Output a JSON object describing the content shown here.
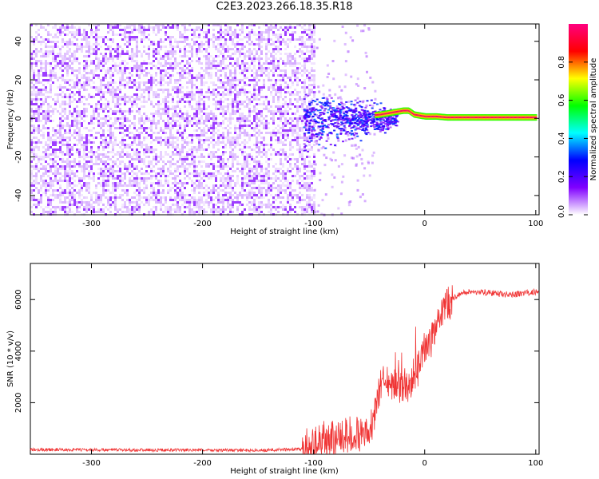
{
  "title": "C2E3.2023.266.18.35.R18",
  "colors": {
    "snr_line": "#f03434",
    "axis": "#000000"
  },
  "chart_data": [
    {
      "type": "heatmap",
      "xlabel": "Height of straight line (km)",
      "ylabel": "Frequency (Hz)",
      "xlim": [
        -355,
        103
      ],
      "ylim": [
        -50,
        49
      ],
      "xticks": [
        -300,
        -200,
        -100,
        0,
        100
      ],
      "yticks": [
        -40,
        -20,
        0,
        20,
        40
      ],
      "xtick_labels": [
        "-300",
        "-200",
        "-100",
        "0",
        "100"
      ],
      "ytick_labels": [
        "-40",
        "-20",
        "0",
        "20",
        "40"
      ],
      "noise_region_x": [
        -355,
        -100
      ],
      "signal_track": [
        {
          "x": -110,
          "f": 0
        },
        {
          "x": -60,
          "f": 1
        },
        {
          "x": -40,
          "f": 2
        },
        {
          "x": -30,
          "f": 3
        },
        {
          "x": -20,
          "f": 4
        },
        {
          "x": -15,
          "f": 4
        },
        {
          "x": -10,
          "f": 2
        },
        {
          "x": 0,
          "f": 1
        },
        {
          "x": 10,
          "f": 1
        },
        {
          "x": 20,
          "f": 0.5
        },
        {
          "x": 100,
          "f": 0.5
        }
      ],
      "colorbar": {
        "label": "Normalized spectral amplitude",
        "range": [
          0,
          1
        ],
        "ticks": [
          0.0,
          0.2,
          0.4,
          0.6,
          0.8
        ],
        "tick_labels": [
          "0.0",
          "0.2",
          "0.4",
          "0.6",
          "0.8"
        ],
        "colormap": [
          "#ffffff",
          "#8000ff",
          "#0000ff",
          "#00ffff",
          "#00ff00",
          "#ffff00",
          "#ff0000",
          "#ff0080"
        ]
      },
      "grid": false
    },
    {
      "type": "line",
      "xlabel": "Height of straight line (km)",
      "ylabel": "SNR (10 * v/v)",
      "xlim": [
        -355,
        103
      ],
      "ylim": [
        0,
        7400
      ],
      "xticks": [
        -300,
        -200,
        -100,
        0,
        100
      ],
      "yticks": [
        2000,
        4000,
        6000
      ],
      "xtick_labels": [
        "-300",
        "-200",
        "-100",
        "0",
        "100"
      ],
      "ytick_labels": [
        "2000",
        "4000",
        "6000"
      ],
      "series": [
        {
          "x": [
            -355,
            -300,
            -200,
            -150,
            -110,
            -100,
            -80,
            -70,
            -60,
            -50,
            -45,
            -40,
            -35,
            -30,
            -25,
            -20,
            -15,
            -10,
            -5,
            0,
            5,
            10,
            15,
            20,
            30,
            40,
            50,
            60,
            70,
            80,
            90,
            100,
            103
          ],
          "y": [
            180,
            170,
            160,
            150,
            200,
            400,
            600,
            700,
            800,
            900,
            1500,
            2500,
            3000,
            2800,
            2700,
            2600,
            2500,
            3000,
            3600,
            4000,
            4300,
            4700,
            5300,
            5800,
            6200,
            6300,
            6300,
            6250,
            6200,
            6200,
            6250,
            6300,
            6300
          ]
        }
      ],
      "grid": false
    }
  ]
}
